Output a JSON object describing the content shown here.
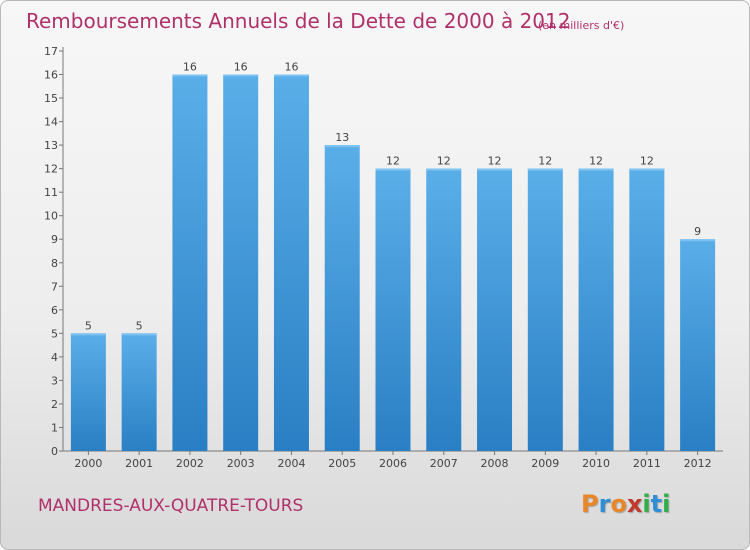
{
  "header": {
    "title": "Remboursements Annuels de la Dette de 2000 à 2012",
    "unit_note": "(en milliers d'€)"
  },
  "footer": {
    "commune": "MANDRES-AUX-QUATRE-TOURS",
    "logo_text": "Proxiti",
    "logo_colors": [
      "#e8862a",
      "#2f8fd6",
      "#e8862a",
      "#c0392b",
      "#2fae4a",
      "#2f8fd6",
      "#2fae4a"
    ]
  },
  "colors": {
    "title": "#b0306a",
    "bar_light": "#5aaee8",
    "bar_dark": "#2a7fc4"
  },
  "chart_data": {
    "type": "bar",
    "categories": [
      "2000",
      "2001",
      "2002",
      "2003",
      "2004",
      "2005",
      "2006",
      "2007",
      "2008",
      "2009",
      "2010",
      "2011",
      "2012"
    ],
    "values": [
      5,
      5,
      16,
      16,
      16,
      13,
      12,
      12,
      12,
      12,
      12,
      12,
      9
    ],
    "data_labels": [
      "5",
      "5",
      "16",
      "16",
      "16",
      "13",
      "12",
      "12",
      "12",
      "12",
      "12",
      "12",
      "9"
    ],
    "y_ticks": [
      0,
      1,
      2,
      3,
      4,
      5,
      6,
      7,
      8,
      9,
      10,
      11,
      12,
      13,
      14,
      15,
      16,
      17
    ],
    "ylim": [
      0,
      17
    ],
    "grid": false,
    "legend": "none"
  }
}
